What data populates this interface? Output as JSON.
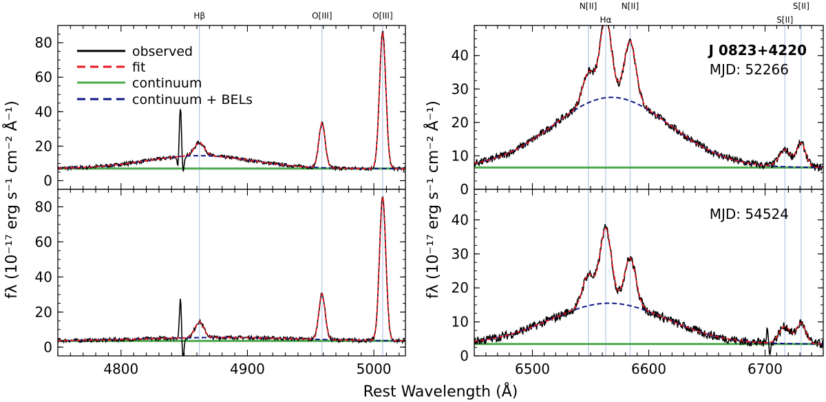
{
  "figure": {
    "xlabel": "Rest Wavelength (Å)",
    "ylabel_left": "fλ (10⁻¹⁷ erg s⁻¹ cm⁻² Å⁻¹)",
    "ylabel_right": "fλ (10⁻¹⁷ erg s⁻¹ cm⁻² Å⁻¹)",
    "object_name": "J 0823+4220"
  },
  "colors": {
    "observed": "#000000",
    "fit": "#e8141e",
    "continuum": "#4aa84a",
    "bels": "#0d1585",
    "line_marker": "#b4c4e8"
  },
  "legend": [
    "observed",
    "fit",
    "continuum",
    "continuum + BELs"
  ],
  "chart_data": [
    {
      "id": "hb-top",
      "type": "line",
      "mjd": "52266",
      "xlim": [
        4750,
        5025
      ],
      "ylim": [
        -5,
        90
      ],
      "xticks": [
        4800,
        4900,
        5000
      ],
      "yticks": [
        0,
        20,
        40,
        60,
        80
      ],
      "continuum": 7,
      "bels": {
        "center": 4862,
        "sigma": 42,
        "amp": 7.5
      },
      "fit_lines": [
        {
          "center": 4862,
          "sigma": 4,
          "amp": 7.5
        },
        {
          "center": 4959,
          "sigma": 2.5,
          "amp": 26
        },
        {
          "center": 5007,
          "sigma": 2.5,
          "amp": 79
        }
      ],
      "spikes": [
        {
          "center": 4847,
          "amp": 29,
          "sigma": 0.8
        },
        {
          "center": 4849,
          "amp": -9,
          "sigma": 0.8
        },
        {
          "center": 4845,
          "amp": -7,
          "sigma": 0.6
        }
      ],
      "noise": 1.0,
      "lines": [
        {
          "name": "Hβ",
          "x": 4862
        },
        {
          "name": "O[III]",
          "x": 4959
        },
        {
          "name": "O[III]",
          "x": 5007
        }
      ]
    },
    {
      "id": "hb-bottom",
      "type": "line",
      "mjd": "54524",
      "xlim": [
        4750,
        5025
      ],
      "ylim": [
        -5,
        90
      ],
      "xticks": [
        4800,
        4900,
        5000
      ],
      "yticks": [
        0,
        20,
        40,
        60,
        80
      ],
      "continuum": 3.5,
      "bels": {
        "center": 4880,
        "sigma": 60,
        "amp": 2
      },
      "fit_lines": [
        {
          "center": 4862,
          "sigma": 3.5,
          "amp": 9
        },
        {
          "center": 4959,
          "sigma": 2.5,
          "amp": 26
        },
        {
          "center": 5007,
          "sigma": 2.5,
          "amp": 82
        }
      ],
      "spikes": [
        {
          "center": 4847,
          "amp": 22,
          "sigma": 0.8
        },
        {
          "center": 4849,
          "amp": -12,
          "sigma": 0.8
        }
      ],
      "noise": 1.0,
      "lines": [
        {
          "name": "Hβ",
          "x": 4862
        },
        {
          "name": "O[III]",
          "x": 4959
        },
        {
          "name": "O[III]",
          "x": 5007
        }
      ]
    },
    {
      "id": "ha-top",
      "type": "line",
      "mjd": "52266",
      "xlim": [
        6450,
        6750
      ],
      "ylim": [
        0,
        49
      ],
      "xticks": [
        6500,
        6600,
        6700
      ],
      "yticks": [
        0,
        10,
        20,
        30,
        40
      ],
      "continuum": 6.5,
      "bels": {
        "center": 6568,
        "sigma": 50,
        "amp": 21
      },
      "fit_lines": [
        {
          "center": 6548,
          "sigma": 5,
          "amp": 9
        },
        {
          "center": 6563,
          "sigma": 5,
          "amp": 24
        },
        {
          "center": 6584,
          "sigma": 5,
          "amp": 18
        },
        {
          "center": 6717,
          "sigma": 5,
          "amp": 5
        },
        {
          "center": 6731,
          "sigma": 4,
          "amp": 7
        }
      ],
      "spikes": [],
      "noise": 1.1,
      "lines": [
        {
          "name": "N[II]",
          "x": 6548
        },
        {
          "name": "Hα",
          "x": 6563
        },
        {
          "name": "N[II]",
          "x": 6584
        },
        {
          "name": "S[II]",
          "x": 6717
        },
        {
          "name": "S[II]",
          "x": 6731
        }
      ]
    },
    {
      "id": "ha-bottom",
      "type": "line",
      "mjd": "54524",
      "xlim": [
        6450,
        6750
      ],
      "ylim": [
        0,
        49
      ],
      "xticks": [
        6500,
        6600,
        6700
      ],
      "yticks": [
        0,
        10,
        20,
        30,
        40
      ],
      "continuum": 3.5,
      "bels": {
        "center": 6566,
        "sigma": 50,
        "amp": 12
      },
      "fit_lines": [
        {
          "center": 6548,
          "sigma": 5,
          "amp": 9
        },
        {
          "center": 6563,
          "sigma": 5,
          "amp": 22
        },
        {
          "center": 6584,
          "sigma": 5,
          "amp": 14
        },
        {
          "center": 6717,
          "sigma": 5,
          "amp": 5
        },
        {
          "center": 6731,
          "sigma": 4,
          "amp": 6
        }
      ],
      "spikes": [
        {
          "center": 6702,
          "amp": 5,
          "sigma": 0.8
        },
        {
          "center": 6704,
          "amp": -4,
          "sigma": 0.8
        }
      ],
      "noise": 1.3,
      "lines": [
        {
          "name": "N[II]",
          "x": 6548
        },
        {
          "name": "Hα",
          "x": 6563
        },
        {
          "name": "N[II]",
          "x": 6584
        },
        {
          "name": "S[II]",
          "x": 6717
        },
        {
          "name": "S[II]",
          "x": 6731
        }
      ]
    }
  ]
}
